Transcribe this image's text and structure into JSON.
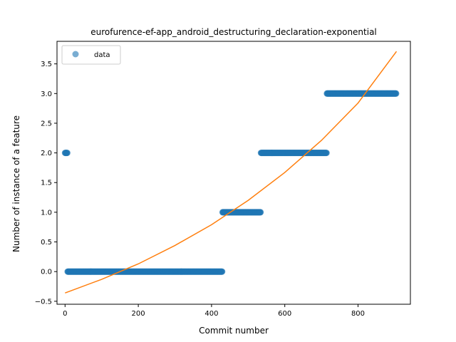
{
  "chart_data": {
    "type": "scatter",
    "title": "eurofurence-ef-app_android_destructuring_declaration-exponential",
    "xlabel": "Commit number",
    "ylabel": "Number of instance of a feature",
    "xlim": [
      -22,
      943
    ],
    "ylim": [
      -0.55,
      3.88
    ],
    "xticks": [
      0,
      200,
      400,
      600,
      800
    ],
    "yticks": [
      -0.5,
      0.0,
      0.5,
      1.0,
      1.5,
      2.0,
      2.5,
      3.0,
      3.5
    ],
    "xtick_labels": [
      "0",
      "200",
      "400",
      "600",
      "800"
    ],
    "ytick_labels": [
      "−0.5",
      "0.0",
      "0.5",
      "1.0",
      "1.5",
      "2.0",
      "2.5",
      "3.0",
      "3.5"
    ],
    "grid": false,
    "legend": {
      "position": "top-left",
      "entries": [
        {
          "label": "data",
          "marker": "circle",
          "color": "#1f77b4"
        }
      ]
    },
    "series": [
      {
        "name": "data",
        "kind": "scatter",
        "color": "#1f77b4",
        "segments": [
          {
            "x_start": 0,
            "x_end": 7,
            "y": 2
          },
          {
            "x_start": 7,
            "x_end": 430,
            "y": 0
          },
          {
            "x_start": 430,
            "x_end": 535,
            "y": 1
          },
          {
            "x_start": 535,
            "x_end": 715,
            "y": 2
          },
          {
            "x_start": 715,
            "x_end": 905,
            "y": 3
          }
        ]
      },
      {
        "kind": "line",
        "color": "#ff7f0e",
        "x": [
          0,
          100,
          200,
          300,
          400,
          500,
          600,
          700,
          800,
          905
        ],
        "y": [
          -0.36,
          -0.13,
          0.13,
          0.44,
          0.79,
          1.2,
          1.67,
          2.21,
          2.84,
          3.71
        ]
      }
    ]
  }
}
